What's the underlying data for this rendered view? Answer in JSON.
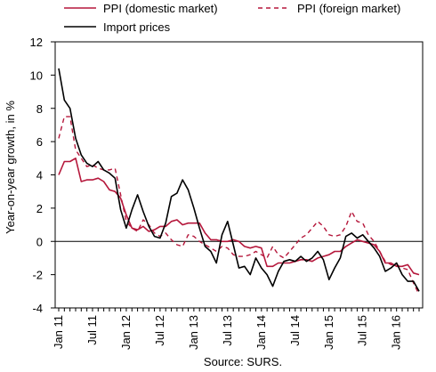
{
  "chart_data": {
    "type": "line",
    "ylabel": "Year-on-year growth, in %",
    "ylim": [
      -4,
      12
    ],
    "yticks": [
      -4,
      -2,
      0,
      2,
      4,
      6,
      8,
      10,
      12
    ],
    "xticks": [
      {
        "x": "2011-01",
        "label": "Jan 11"
      },
      {
        "x": "2011-07",
        "label": "Jul 11"
      },
      {
        "x": "2012-01",
        "label": "Jan 12"
      },
      {
        "x": "2012-07",
        "label": "Jul 12"
      },
      {
        "x": "2013-01",
        "label": "Jan 13"
      },
      {
        "x": "2013-07",
        "label": "Jul 13"
      },
      {
        "x": "2014-01",
        "label": "Jan 14"
      },
      {
        "x": "2014-07",
        "label": "Jul 14"
      },
      {
        "x": "2015-01",
        "label": "Jan 15"
      },
      {
        "x": "2015-07",
        "label": "Jul 15"
      },
      {
        "x": "2016-01",
        "label": "Jan 16"
      }
    ],
    "x": [
      "2011-01",
      "2011-02",
      "2011-03",
      "2011-04",
      "2011-05",
      "2011-06",
      "2011-07",
      "2011-08",
      "2011-09",
      "2011-10",
      "2011-11",
      "2011-12",
      "2012-01",
      "2012-02",
      "2012-03",
      "2012-04",
      "2012-05",
      "2012-06",
      "2012-07",
      "2012-08",
      "2012-09",
      "2012-10",
      "2012-11",
      "2012-12",
      "2013-01",
      "2013-02",
      "2013-03",
      "2013-04",
      "2013-05",
      "2013-06",
      "2013-07",
      "2013-08",
      "2013-09",
      "2013-10",
      "2013-11",
      "2013-12",
      "2014-01",
      "2014-02",
      "2014-03",
      "2014-04",
      "2014-05",
      "2014-06",
      "2014-07",
      "2014-08",
      "2014-09",
      "2014-10",
      "2014-11",
      "2014-12",
      "2015-01",
      "2015-02",
      "2015-03",
      "2015-04",
      "2015-05",
      "2015-06",
      "2015-07",
      "2015-08",
      "2015-09",
      "2015-10",
      "2015-11",
      "2015-12",
      "2016-01",
      "2016-02",
      "2016-03",
      "2016-04",
      "2016-05"
    ],
    "series": [
      {
        "name": "PPI (domestic market)",
        "color": "#b5173b",
        "dash": "solid",
        "values": [
          4.0,
          4.8,
          4.8,
          5.0,
          3.6,
          3.7,
          3.7,
          3.8,
          3.6,
          3.1,
          3.0,
          2.6,
          1.6,
          0.8,
          0.7,
          0.9,
          0.6,
          0.7,
          0.9,
          0.9,
          1.2,
          1.3,
          1.0,
          1.1,
          1.1,
          1.1,
          0.5,
          0.1,
          0.1,
          0.0,
          0.0,
          0.1,
          0.0,
          -0.3,
          -0.4,
          -0.3,
          -0.4,
          -1.5,
          -1.5,
          -1.3,
          -1.3,
          -1.3,
          -1.2,
          -1.1,
          -1.1,
          -1.2,
          -1.0,
          -0.9,
          -0.8,
          -0.6,
          -0.6,
          -0.3,
          -0.1,
          0.1,
          0.0,
          -0.1,
          -0.2,
          -0.6,
          -1.3,
          -1.3,
          -1.5,
          -1.5,
          -1.4,
          -1.9,
          -2.0
        ]
      },
      {
        "name": "PPI (foreign market)",
        "color": "#b5173b",
        "dash": "dashed",
        "values": [
          6.2,
          7.5,
          7.5,
          5.5,
          5.0,
          4.5,
          4.6,
          4.4,
          4.3,
          4.3,
          4.4,
          2.8,
          1.2,
          0.8,
          0.6,
          1.3,
          1.0,
          0.5,
          0.3,
          0.5,
          0.1,
          -0.2,
          -0.3,
          0.4,
          0.3,
          0.0,
          -0.2,
          -0.4,
          -0.6,
          -0.3,
          -0.4,
          -0.8,
          -0.9,
          -0.9,
          -0.8,
          -0.6,
          -0.8,
          -1.0,
          -0.3,
          -0.8,
          -1.0,
          -0.6,
          -0.2,
          0.2,
          0.4,
          0.8,
          1.2,
          0.9,
          0.4,
          0.3,
          0.4,
          0.9,
          1.8,
          1.2,
          1.1,
          0.4,
          0.0,
          -0.6,
          -1.2,
          -1.4,
          -1.4,
          -1.6,
          -1.7,
          -2.5,
          -3.2
        ]
      },
      {
        "name": "Import prices",
        "color": "#000000",
        "dash": "solid",
        "values": [
          10.4,
          8.5,
          8.0,
          6.2,
          5.2,
          4.7,
          4.5,
          4.8,
          4.3,
          4.1,
          3.8,
          1.9,
          0.8,
          1.9,
          2.8,
          1.8,
          0.9,
          0.3,
          0.2,
          1.1,
          2.7,
          2.9,
          3.7,
          3.1,
          2.0,
          0.8,
          -0.3,
          -0.6,
          -1.3,
          0.4,
          1.2,
          -0.2,
          -1.6,
          -1.5,
          -2.0,
          -1.0,
          -1.6,
          -2.0,
          -2.7,
          -1.8,
          -1.2,
          -1.1,
          -1.2,
          -0.9,
          -1.2,
          -1.0,
          -0.6,
          -1.1,
          -2.3,
          -1.6,
          -1.0,
          0.3,
          0.5,
          0.2,
          0.4,
          0.0,
          -0.4,
          -0.9,
          -1.8,
          -1.6,
          -1.3,
          -2.0,
          -2.4,
          -2.4,
          -3.0
        ]
      }
    ],
    "source": "Source: SURS.",
    "grid": false,
    "legend": "top"
  }
}
